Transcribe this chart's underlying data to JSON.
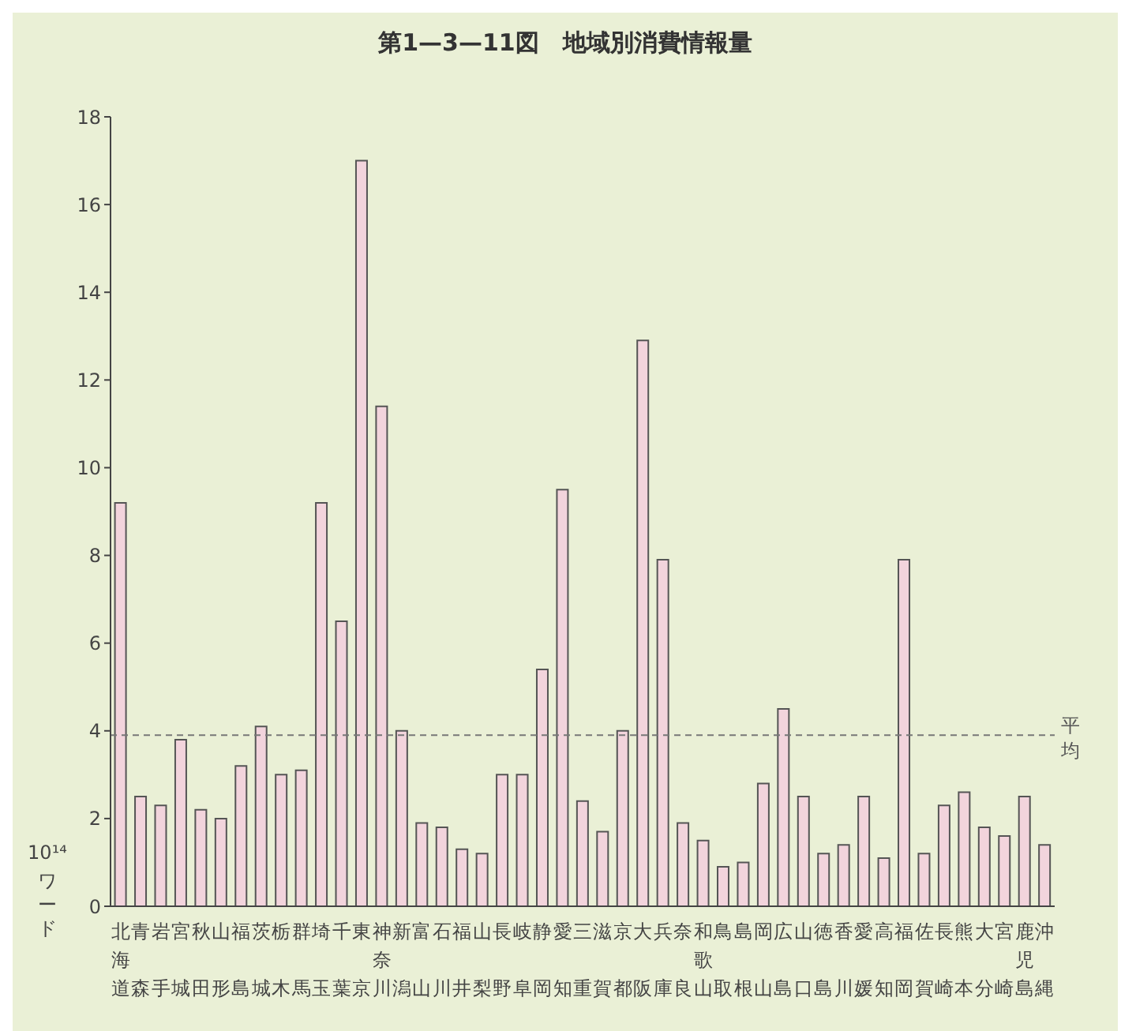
{
  "chart_data": {
    "type": "bar",
    "title": "第1—3—11図　地域別消費情報量",
    "ylabel": "10¹⁴ ワード",
    "categories": [
      "北海道",
      "青森",
      "岩手",
      "宮城",
      "秋田",
      "山形",
      "福島",
      "茨城",
      "栃木",
      "群馬",
      "埼玉",
      "千葉",
      "東京",
      "神奈川",
      "新潟",
      "富山",
      "石川",
      "福井",
      "山梨",
      "長野",
      "岐阜",
      "静岡",
      "愛知",
      "三重",
      "滋賀",
      "京都",
      "大阪",
      "兵庫",
      "奈良",
      "和歌山",
      "鳥取",
      "島根",
      "岡山",
      "広島",
      "山口",
      "徳島",
      "香川",
      "愛媛",
      "高知",
      "福岡",
      "佐賀",
      "長崎",
      "熊本",
      "大分",
      "宮崎",
      "鹿児島",
      "沖縄"
    ],
    "values": [
      9.2,
      2.5,
      2.3,
      3.8,
      2.2,
      2.0,
      3.2,
      4.1,
      3.0,
      3.1,
      9.2,
      6.5,
      17.0,
      11.4,
      4.0,
      1.9,
      1.8,
      1.3,
      1.2,
      3.0,
      3.0,
      5.4,
      9.5,
      2.4,
      1.7,
      4.0,
      12.9,
      7.9,
      1.9,
      1.5,
      0.9,
      1.0,
      2.8,
      4.5,
      2.5,
      1.2,
      1.4,
      2.5,
      1.1,
      7.9,
      1.2,
      2.3,
      2.6,
      1.8,
      1.6,
      2.5,
      1.4
    ],
    "color": "#f2d4dc",
    "ylim": [
      0,
      18
    ],
    "yticks": [
      0,
      2,
      4,
      6,
      8,
      10,
      12,
      14,
      16,
      18
    ],
    "ref_lines": [
      {
        "axis": "y",
        "value": 3.9,
        "label": "平均",
        "color": "#777777",
        "line_style": "dashed"
      }
    ],
    "grid": false,
    "legend": false
  }
}
